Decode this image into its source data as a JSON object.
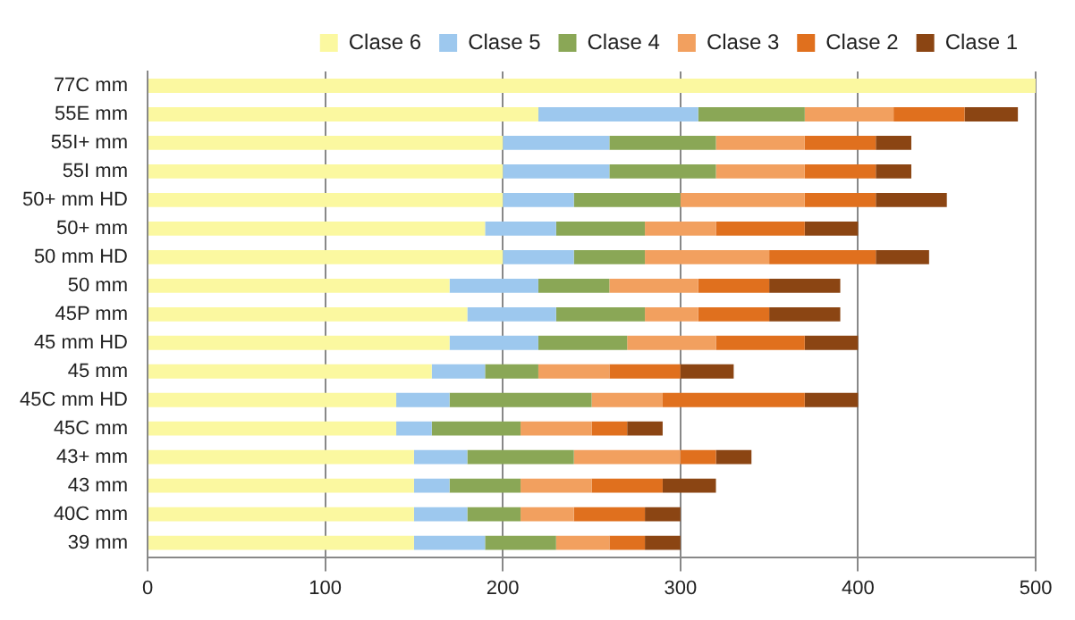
{
  "chart_data": {
    "type": "bar",
    "orientation": "horizontal",
    "stacked": true,
    "legend": "top right",
    "grid": "x",
    "categories": [
      "77C mm",
      "55E mm",
      "55I+ mm",
      "55I mm",
      "50+ mm HD",
      "50+ mm",
      "50 mm HD",
      "50 mm",
      "45P mm",
      "45 mm HD",
      "45 mm",
      "45C mm HD",
      "45C mm",
      "43+ mm",
      "43 mm",
      "40C mm",
      "39 mm"
    ],
    "xlim": [
      0,
      500
    ],
    "xticks": [
      0,
      100,
      200,
      300,
      400,
      500
    ],
    "series": [
      {
        "name": "Clase 6",
        "color": "#fbf8a0",
        "values": [
          500,
          220,
          200,
          200,
          200,
          190,
          200,
          170,
          180,
          170,
          160,
          140,
          140,
          150,
          150,
          150,
          150
        ]
      },
      {
        "name": "Clase 5",
        "color": "#9dc8ee",
        "values": [
          0,
          90,
          60,
          60,
          40,
          40,
          40,
          50,
          50,
          50,
          30,
          30,
          20,
          30,
          20,
          30,
          40
        ]
      },
      {
        "name": "Clase 4",
        "color": "#8aa756",
        "values": [
          0,
          60,
          60,
          60,
          60,
          50,
          40,
          40,
          50,
          50,
          30,
          80,
          50,
          60,
          40,
          30,
          40
        ]
      },
      {
        "name": "Clase 3",
        "color": "#f2a05f",
        "values": [
          0,
          50,
          50,
          50,
          70,
          40,
          70,
          50,
          30,
          50,
          40,
          40,
          40,
          60,
          40,
          30,
          30
        ]
      },
      {
        "name": "Clase 2",
        "color": "#e0701e",
        "values": [
          0,
          40,
          40,
          40,
          40,
          50,
          60,
          40,
          40,
          50,
          40,
          80,
          20,
          20,
          40,
          40,
          20
        ]
      },
      {
        "name": "Clase 1",
        "color": "#8b4513",
        "values": [
          0,
          30,
          20,
          20,
          40,
          30,
          30,
          40,
          40,
          30,
          30,
          30,
          20,
          20,
          30,
          20,
          20
        ]
      }
    ]
  }
}
